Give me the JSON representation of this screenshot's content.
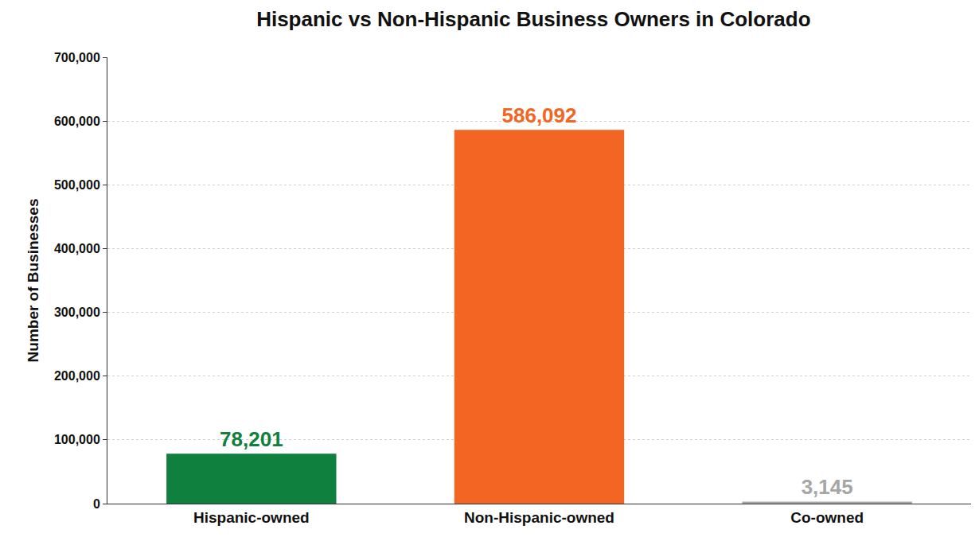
{
  "chart_data": {
    "type": "bar",
    "title": "Hispanic vs Non-Hispanic Business Owners in Colorado",
    "y_label": "Number of Businesses",
    "categories": [
      "Hispanic-owned",
      "Non-Hispanic-owned",
      "Co-owned"
    ],
    "values": [
      78201,
      586092,
      3145
    ],
    "value_labels": [
      "78,201",
      "586,092",
      "3,145"
    ],
    "colors": [
      "#10803f",
      "#f26522",
      "#a6a6a6"
    ],
    "data_labels": true,
    "ylim": [
      0,
      700000
    ],
    "yticks": [
      0,
      {
        "value": 100000,
        "label": "100,000"
      },
      {
        "value": 200000,
        "label": "200,000"
      },
      {
        "value": 300000,
        "label": "300,000"
      },
      {
        "value": 400000,
        "label": "400,000"
      },
      {
        "value": 500000,
        "label": "500,000"
      },
      {
        "value": 600000,
        "label": "600,000"
      },
      {
        "value": 700000,
        "label": "700,000"
      }
    ],
    "grid": true
  }
}
